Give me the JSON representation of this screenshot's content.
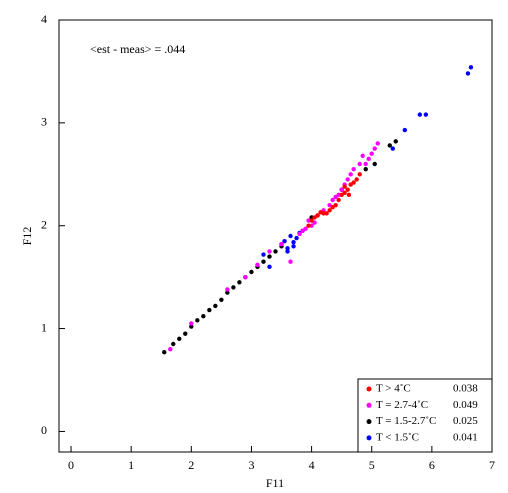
{
  "chart_data": {
    "type": "scatter",
    "annotation": "<est - meas> = .044",
    "x_label": "F11",
    "y_label": "F12",
    "xlim": [
      -0.2,
      7
    ],
    "ylim": [
      -0.2,
      4
    ],
    "xticks": [
      0,
      1,
      2,
      3,
      4,
      5,
      6,
      7
    ],
    "yticks": [
      0,
      1,
      2,
      3,
      4
    ],
    "legend": "lower right",
    "series": [
      {
        "name": "T > 4˚C",
        "color": "#ff0000",
        "stat": 0.038,
        "x": [
          3.95,
          4.0,
          4.05,
          4.1,
          4.15,
          4.2,
          4.3,
          4.4,
          4.45,
          4.5,
          4.55,
          4.6,
          4.65,
          4.7,
          4.75,
          4.8,
          4.25,
          4.35,
          4.55,
          4.62
        ],
        "values": [
          2.0,
          2.05,
          2.08,
          2.1,
          2.13,
          2.12,
          2.15,
          2.2,
          2.25,
          2.3,
          2.32,
          2.35,
          2.4,
          2.42,
          2.45,
          2.5,
          2.12,
          2.18,
          2.38,
          2.3
        ]
      },
      {
        "name": "T = 2.7-4˚C",
        "color": "#ff00ff",
        "stat": 0.049,
        "x": [
          1.65,
          2.0,
          2.6,
          2.9,
          3.1,
          3.3,
          3.5,
          3.65,
          3.8,
          3.85,
          3.9,
          3.95,
          4.0,
          4.05,
          4.1,
          4.2,
          4.3,
          4.35,
          4.4,
          4.45,
          4.5,
          4.55,
          4.6,
          4.65,
          4.7,
          4.8,
          4.85,
          4.9,
          4.95,
          5.0,
          5.05,
          5.1
        ],
        "values": [
          0.8,
          1.05,
          1.38,
          1.5,
          1.62,
          1.75,
          1.82,
          1.65,
          1.92,
          1.95,
          1.97,
          2.05,
          2.0,
          2.03,
          2.1,
          2.15,
          2.2,
          2.25,
          2.28,
          2.3,
          2.35,
          2.4,
          2.45,
          2.5,
          2.55,
          2.6,
          2.68,
          2.6,
          2.65,
          2.7,
          2.75,
          2.8
        ]
      },
      {
        "name": "T = 1.5-2.7˚C",
        "color": "#000000",
        "stat": 0.025,
        "x": [
          1.55,
          1.7,
          1.8,
          1.9,
          2.0,
          2.1,
          2.2,
          2.3,
          2.4,
          2.5,
          2.6,
          2.7,
          2.8,
          2.9,
          3.0,
          3.1,
          3.2,
          3.3,
          3.4,
          3.5,
          4.0,
          4.5,
          4.9,
          5.05,
          5.3,
          5.4
        ],
        "values": [
          0.77,
          0.85,
          0.9,
          0.95,
          1.02,
          1.08,
          1.12,
          1.18,
          1.22,
          1.28,
          1.35,
          1.4,
          1.45,
          1.5,
          1.55,
          1.6,
          1.65,
          1.7,
          1.75,
          1.8,
          2.08,
          2.35,
          2.55,
          2.6,
          2.78,
          2.82
        ]
      },
      {
        "name": "T < 1.5˚C",
        "color": "#0000ff",
        "stat": 0.041,
        "x": [
          3.5,
          3.55,
          3.6,
          3.65,
          3.7,
          3.75,
          3.8,
          3.6,
          3.7,
          3.85,
          3.2,
          3.3,
          5.35,
          5.55,
          5.8,
          5.9,
          6.6,
          6.65
        ],
        "values": [
          1.82,
          1.85,
          1.78,
          1.9,
          1.84,
          1.88,
          1.93,
          1.75,
          1.8,
          1.95,
          1.72,
          1.6,
          2.75,
          2.93,
          3.08,
          3.08,
          3.48,
          3.54
        ]
      }
    ]
  }
}
